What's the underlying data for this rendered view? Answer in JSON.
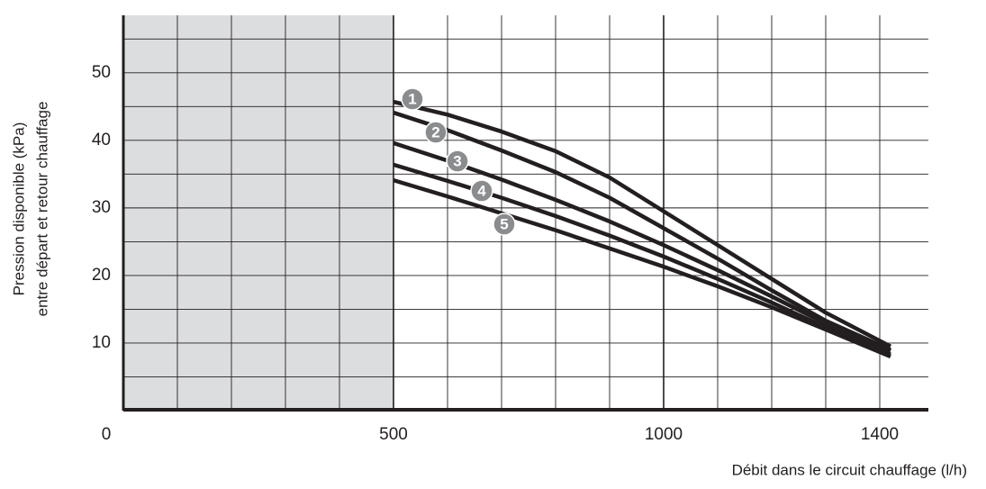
{
  "chart_data": {
    "type": "line",
    "ylabel": [
      "Pression disponible (kPa)",
      "entre départ et retour chauffage"
    ],
    "xlabel": "Débit dans le circuit chauffage (l/h)",
    "x": [
      500,
      600,
      700,
      800,
      900,
      1000,
      1100,
      1200,
      1300,
      1420
    ],
    "series": [
      {
        "name": "1",
        "color": "#231f20",
        "values": [
          45.7,
          43.8,
          41.3,
          38.4,
          34.5,
          29.5,
          24.5,
          19.5,
          14.5,
          9.5
        ]
      },
      {
        "name": "2",
        "color": "#231f20",
        "values": [
          44.1,
          41.5,
          38.5,
          35.3,
          31.5,
          27.0,
          22.5,
          17.8,
          13.3,
          9.0
        ]
      },
      {
        "name": "3",
        "color": "#231f20",
        "values": [
          39.6,
          37.0,
          34.2,
          31.2,
          28.0,
          24.5,
          20.8,
          16.9,
          12.9,
          8.8
        ]
      },
      {
        "name": "4",
        "color": "#231f20",
        "values": [
          36.4,
          34.0,
          31.5,
          28.8,
          25.9,
          22.8,
          19.5,
          16.0,
          12.3,
          8.3
        ]
      },
      {
        "name": "5",
        "color": "#231f20",
        "values": [
          34.1,
          31.7,
          29.2,
          26.7,
          24.0,
          21.3,
          18.4,
          15.3,
          12.0,
          8.0
        ]
      }
    ],
    "xlim": [
      0,
      1490
    ],
    "ylim": [
      0,
      58.5
    ],
    "xticks": [
      0,
      500,
      1000,
      1400
    ],
    "yticks": [
      10,
      20,
      30,
      40,
      50
    ],
    "xgrid": [
      100,
      200,
      300,
      400,
      500,
      600,
      700,
      800,
      900,
      1000,
      1100,
      1200,
      1300,
      1400
    ],
    "ygrid": [
      5,
      10,
      15,
      20,
      25,
      30,
      35,
      40,
      45,
      50,
      55
    ],
    "shaded_range": [
      0,
      500
    ],
    "shade_color": "#dcdddf",
    "marker_color": "#8a8c8e"
  }
}
